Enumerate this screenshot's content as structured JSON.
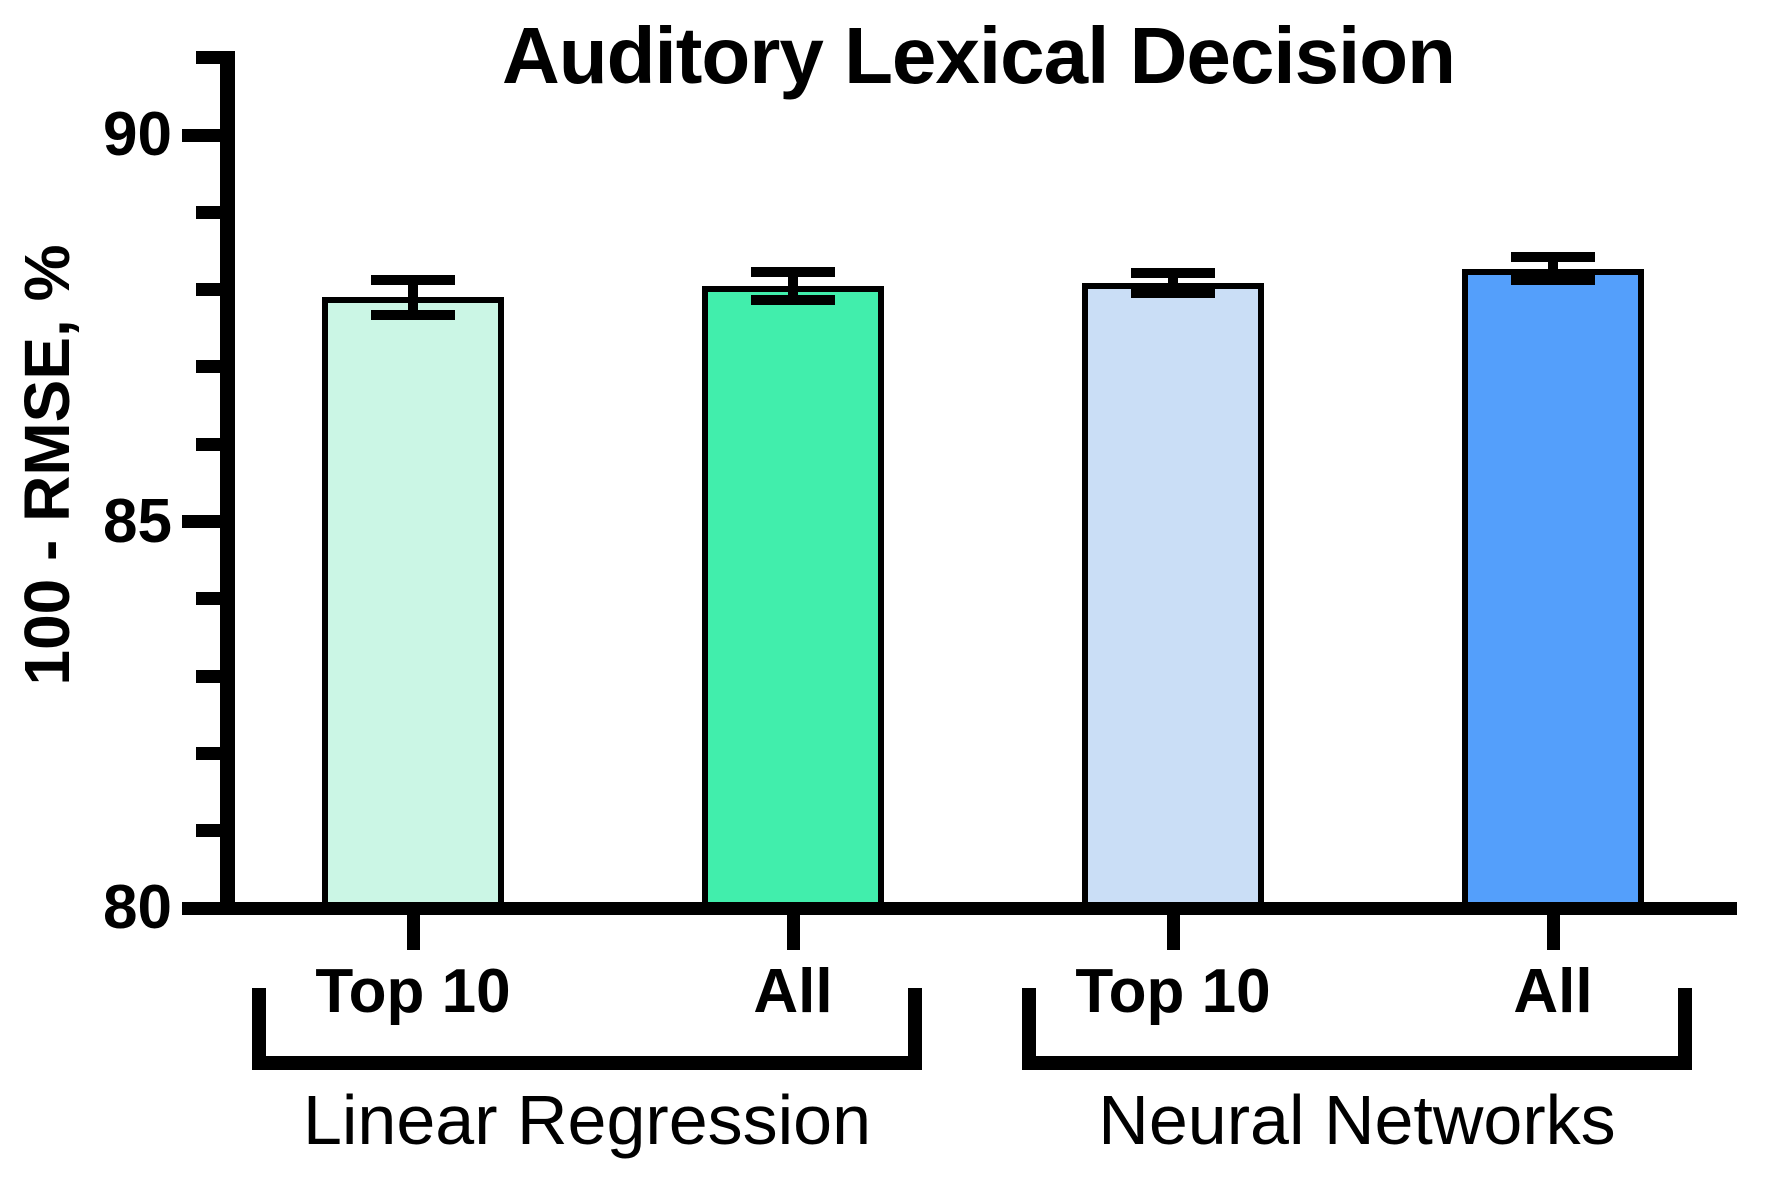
{
  "title": "Auditory Lexical Decision",
  "y_axis": {
    "label": "100 - RMSE, %",
    "major_ticks": [
      80,
      85,
      90
    ],
    "minor_ticks": [
      81,
      82,
      83,
      84,
      86,
      87,
      88,
      89,
      91
    ],
    "range_min": 80,
    "range_max": 91.1
  },
  "chart_data": {
    "type": "bar",
    "title": "Auditory Lexical Decision",
    "xlabel": "",
    "ylabel": "100 - RMSE, %",
    "ylim": [
      80,
      91.1
    ],
    "yticks": [
      80,
      85,
      90
    ],
    "grid": false,
    "legend_position": "none",
    "error_bars": true,
    "bar_edge_color": "#000000",
    "error_bar_color": "#000000",
    "groups": [
      {
        "label": "Linear Regression",
        "bars": [
          {
            "category": "Top 10",
            "value": 87.9,
            "error": 0.23,
            "color": "#cbf6e5"
          },
          {
            "category": "All",
            "value": 88.05,
            "error": 0.18,
            "color": "#41eeac"
          }
        ]
      },
      {
        "label": "Neural Networks",
        "bars": [
          {
            "category": "Top 10",
            "value": 88.08,
            "error": 0.13,
            "color": "#cadef6"
          },
          {
            "category": "All",
            "value": 88.27,
            "error": 0.15,
            "color": "#549ffb"
          }
        ]
      }
    ]
  }
}
